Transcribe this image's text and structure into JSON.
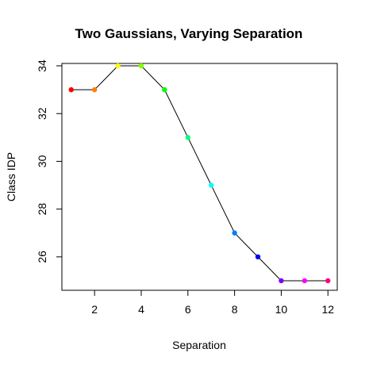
{
  "chart_data": {
    "type": "line",
    "title": "Two Gaussians, Varying Separation",
    "xlabel": "Separation",
    "ylabel": "Class IDP",
    "xlim": [
      0.6,
      12.4
    ],
    "ylim": [
      24.6,
      34.1
    ],
    "x_ticks": [
      "2",
      "4",
      "6",
      "8",
      "10",
      "12"
    ],
    "y_ticks": [
      "26",
      "28",
      "30",
      "32",
      "34"
    ],
    "grid": false,
    "legend": "none",
    "line_color": "#000000",
    "series": [
      {
        "x": [
          1,
          2,
          3,
          4,
          5,
          6,
          7,
          8,
          9,
          10,
          11,
          12
        ],
        "values": [
          33,
          33,
          34,
          34,
          33,
          31,
          29,
          27,
          26,
          25,
          25,
          25
        ],
        "point_colors": [
          "#ff0000",
          "#ff8000",
          "#ffff00",
          "#80ff00",
          "#00ff00",
          "#00ff80",
          "#00ffff",
          "#0080ff",
          "#0000ff",
          "#8000ff",
          "#ff00ff",
          "#ff0080"
        ]
      }
    ]
  }
}
